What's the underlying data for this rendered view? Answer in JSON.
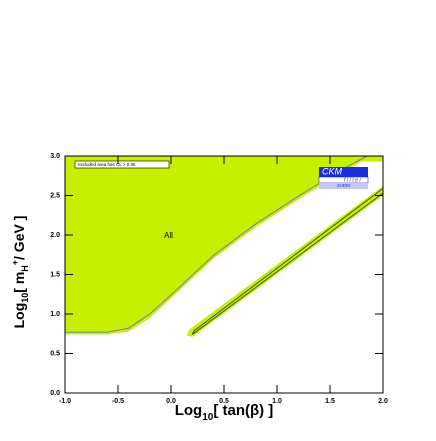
{
  "chart_data": {
    "type": "region",
    "legend_text": "excluded area has CL > 0.95",
    "annotation": "All",
    "logo": {
      "top": "CKM",
      "middle": "fitter",
      "bottom": "2HDM"
    },
    "x_label": {
      "main": "Log",
      "sub": "10",
      "rest": "[ tan(β) ]"
    },
    "y_label": {
      "main": "Log",
      "sub": "10",
      "mid": "[ m",
      "msub": "H",
      "msup": "+",
      "rest": "/ GeV ]"
    },
    "xlim": [
      -1,
      2
    ],
    "ylim": [
      0,
      3
    ],
    "xticks": [
      {
        "value": -1,
        "label": "-1.0"
      },
      -0.5,
      {
        "value": 0,
        "label": "0.0"
      },
      0.5,
      {
        "value": 1,
        "label": "1.0"
      },
      1.5,
      {
        "value": 2,
        "label": "2.0"
      }
    ],
    "yticks": [
      {
        "value": 0,
        "label": "0.0"
      },
      0.5,
      {
        "value": 1,
        "label": "1.0"
      },
      1.5,
      {
        "value": 2,
        "label": "2.0"
      },
      2.5,
      {
        "value": 3,
        "label": "3.0"
      }
    ],
    "regions": [
      {
        "color": "#c6f000",
        "x": [
          -1,
          -1,
          -0.6,
          -0.4,
          -0.2,
          0,
          0.4,
          0.8,
          1.2,
          1.6,
          1.8,
          2.0,
          2.0
        ],
        "y": [
          3,
          0.74,
          0.74,
          0.78,
          0.95,
          1.2,
          1.7,
          2.1,
          2.45,
          2.78,
          2.93,
          2.93,
          3
        ]
      },
      {
        "color": "#c6f000",
        "x": [
          0.15,
          0.2,
          2.0,
          2.0,
          0.17
        ],
        "y": [
          0.73,
          0.71,
          2.5,
          2.62,
          0.8
        ]
      }
    ],
    "contours": [
      {
        "color": "#6b7fbf",
        "x": [
          -1,
          -0.6,
          -0.4,
          -0.2,
          0,
          0.4,
          0.8,
          1.2,
          1.6,
          1.85
        ],
        "y": [
          0.77,
          0.77,
          0.82,
          1.0,
          1.24,
          1.74,
          2.14,
          2.49,
          2.82,
          3.0
        ]
      },
      {
        "color": "#3d5a2a",
        "x": [
          0.2,
          2.0,
          2.0,
          0.22,
          0.2
        ],
        "y": [
          0.74,
          2.53,
          2.59,
          0.79,
          0.74
        ]
      }
    ]
  }
}
